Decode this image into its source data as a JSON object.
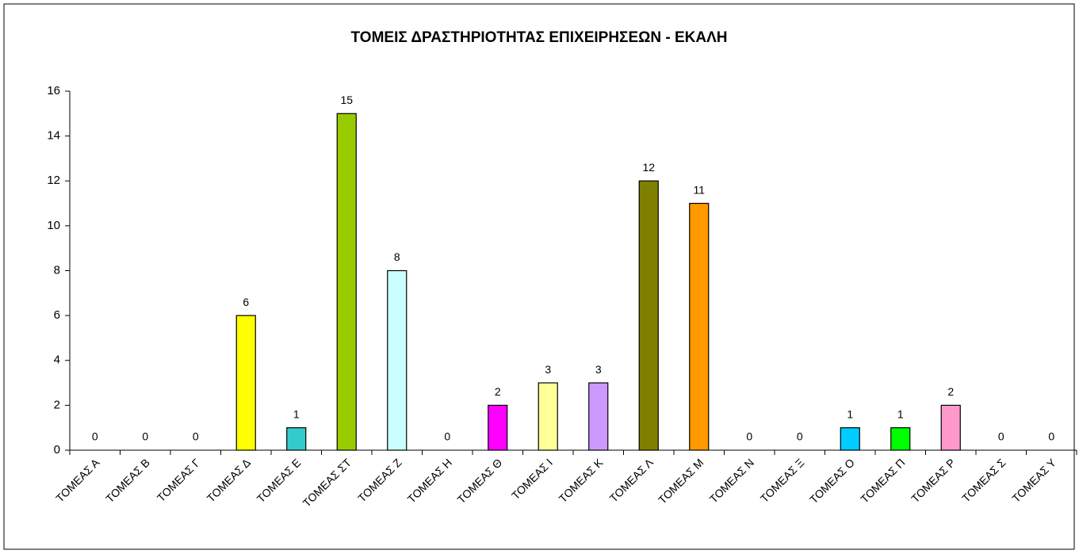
{
  "chart_data": {
    "type": "bar",
    "title": "ΤΟΜΕΙΣ ΔΡΑΣΤΗΡΙΟΤΗΤΑΣ ΕΠΙΧΕΙΡΗΣΕΩΝ - ΕΚΑΛΗ",
    "categories": [
      "ΤΟΜΕΑΣ Α",
      "ΤΟΜΕΑΣ Β",
      "ΤΟΜΕΑΣ Γ",
      "ΤΟΜΕΑΣ Δ",
      "ΤΟΜΕΑΣ Ε",
      "ΤΟΜΕΑΣ ΣΤ",
      "ΤΟΜΕΑΣ  Ζ",
      "ΤΟΜΕΑΣ Η",
      "ΤΟΜΕΑΣ Θ",
      "ΤΟΜΕΑΣ Ι",
      "ΤΟΜΕΑΣ Κ",
      "ΤΟΜΕΑΣ Λ",
      "ΤΟΜΕΑΣ Μ",
      "ΤΟΜΕΑΣ Ν",
      "ΤΟΜΕΑΣ Ξ",
      "ΤΟΜΕΑΣ Ο",
      "ΤΟΜΕΑΣ Π",
      "ΤΟΜΕΑΣ Ρ",
      "ΤΟΜΕΑΣ Σ",
      "ΤΟΜΕΑΣ Υ"
    ],
    "values": [
      0,
      0,
      0,
      6,
      1,
      15,
      8,
      0,
      2,
      3,
      3,
      12,
      11,
      0,
      0,
      1,
      1,
      2,
      0,
      0
    ],
    "colors": [
      "#9999ff",
      "#993366",
      "#ffffcc",
      "#ffff00",
      "#33cccc",
      "#99cc00",
      "#ccffff",
      "#660066",
      "#ff00ff",
      "#ffff99",
      "#cc99ff",
      "#808000",
      "#ff9900",
      "#0066cc",
      "#ccccff",
      "#00ccff",
      "#00ff00",
      "#ff99cc",
      "#800000",
      "#008080"
    ],
    "ylim": [
      0,
      16
    ],
    "yticks": [
      0,
      2,
      4,
      6,
      8,
      10,
      12,
      14,
      16
    ],
    "grid": false
  }
}
